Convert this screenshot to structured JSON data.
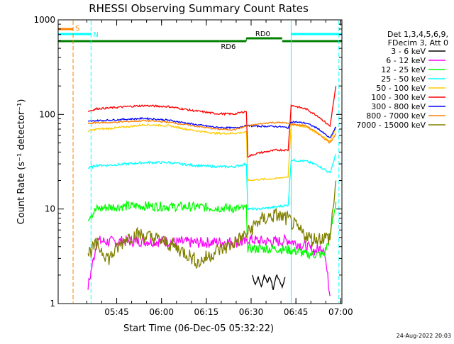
{
  "chart_data": {
    "type": "line",
    "title": "RHESSI Observing Summary Count Rates",
    "xlabel": "Start Time (06-Dec-05 05:32:22)",
    "ylabel": "Count Rate (s⁻¹ detector⁻¹)",
    "yscale": "log",
    "ylim": [
      1,
      1000
    ],
    "xlim": [
      -7,
      88
    ],
    "x_unit": "minutes after 05:32:22",
    "x_ticks": [
      {
        "x": 12.6,
        "label": "05:45"
      },
      {
        "x": 27.6,
        "label": "06:00"
      },
      {
        "x": 42.6,
        "label": "06:15"
      },
      {
        "x": 57.6,
        "label": "06:30"
      },
      {
        "x": 72.6,
        "label": "06:45"
      },
      {
        "x": 87.6,
        "label": "07:00"
      }
    ],
    "y_ticks": [
      {
        "y": 1,
        "label": "1"
      },
      {
        "y": 10,
        "label": "10"
      },
      {
        "y": 100,
        "label": "100"
      },
      {
        "y": 1000,
        "label": "1000"
      }
    ],
    "grid": false,
    "legend_placement": "right",
    "legend_header": [
      "Det 1,3,4,5,6,9,",
      "FDecim 3, Att 0"
    ],
    "series": [
      {
        "name": "3 - 6 keV",
        "color": "#000000",
        "x": [
          58,
          59,
          60,
          61,
          62,
          63,
          64,
          65,
          66,
          67,
          68,
          69
        ],
        "y": [
          2.0,
          1.6,
          1.9,
          1.5,
          2.0,
          1.7,
          1.9,
          1.4,
          2.0,
          1.8,
          1.5,
          1.9
        ]
      },
      {
        "name": "6 - 12 keV",
        "color": "#ff00ff",
        "x": [
          3,
          6,
          10,
          20,
          30,
          40,
          50,
          56,
          56.5,
          60,
          66,
          70,
          74,
          76,
          79,
          82,
          84
        ],
        "y": [
          1.5,
          4.6,
          4.5,
          4.6,
          4.5,
          4.4,
          4.5,
          4.4,
          4.8,
          4.6,
          4.5,
          4.7,
          4.2,
          4.0,
          3.6,
          4.0,
          1.2
        ]
      },
      {
        "name": "12 - 25 keV",
        "color": "#00ff00",
        "x": [
          3,
          6,
          10,
          20,
          30,
          40,
          50,
          56,
          56.5,
          60,
          66,
          70,
          74,
          76,
          79,
          82,
          84,
          85,
          86
        ],
        "y": [
          8.2,
          10.0,
          10.5,
          10.8,
          10.6,
          10.5,
          10.2,
          10.0,
          3.8,
          3.8,
          3.8,
          3.7,
          3.5,
          3.3,
          3.3,
          3.3,
          5.0,
          8.0,
          12.0
        ]
      },
      {
        "name": "25 - 50 keV",
        "color": "#00ffff",
        "x": [
          3,
          6,
          10,
          16,
          22,
          30,
          38,
          46,
          52,
          56,
          56.5,
          60,
          66,
          70,
          71,
          76,
          80,
          84,
          86
        ],
        "y": [
          27,
          29,
          29,
          30,
          31,
          31,
          29,
          28,
          28,
          30,
          10,
          10,
          10.5,
          11,
          33,
          32,
          29,
          24,
          38
        ]
      },
      {
        "name": "50 - 100 keV",
        "color": "#ffcc00",
        "x": [
          3,
          6,
          10,
          16,
          22,
          30,
          38,
          46,
          52,
          56,
          56.5,
          60,
          66,
          70,
          71,
          76,
          80,
          84,
          86
        ],
        "y": [
          67,
          70,
          71,
          74,
          78,
          76,
          68,
          63,
          63,
          65,
          20,
          20.5,
          21,
          22,
          78,
          74,
          63,
          52,
          72
        ]
      },
      {
        "name": "100 - 300 keV",
        "color": "#ff0000",
        "x": [
          3,
          6,
          10,
          16,
          22,
          30,
          38,
          46,
          52,
          56,
          56.5,
          60,
          66,
          70,
          71,
          76,
          80,
          84,
          86
        ],
        "y": [
          108,
          115,
          117,
          121,
          124,
          121,
          110,
          102,
          101,
          108,
          36,
          39,
          42,
          42,
          125,
          114,
          96,
          75,
          200
        ]
      },
      {
        "name": "300 - 800 keV",
        "color": "#0000ff",
        "x": [
          3,
          6,
          10,
          16,
          22,
          30,
          38,
          46,
          52,
          56,
          60,
          64,
          68,
          70,
          71,
          76,
          80,
          84,
          86
        ],
        "y": [
          84,
          86,
          87,
          89,
          91,
          87,
          79,
          73,
          72,
          76,
          75,
          75,
          74,
          72,
          84,
          81,
          71,
          56,
          74
        ]
      },
      {
        "name": "800 - 7000 keV",
        "color": "#ff8000",
        "x": [
          3,
          6,
          10,
          16,
          22,
          30,
          38,
          46,
          52,
          56,
          60,
          64,
          68,
          70,
          71,
          76,
          80,
          84,
          86
        ],
        "y": [
          80,
          82,
          82,
          84,
          86,
          83,
          76,
          70,
          69,
          75,
          79,
          82,
          82,
          80,
          79,
          76,
          63,
          50,
          63
        ]
      },
      {
        "name": "7000 - 15000 keV",
        "color": "#808000",
        "x": [
          3,
          6,
          10,
          16,
          20,
          26,
          30,
          36,
          40,
          46,
          50,
          56,
          60,
          64,
          66,
          70,
          74,
          78,
          82,
          84,
          86
        ],
        "y": [
          3.4,
          4.2,
          3.0,
          5.0,
          5.4,
          4.8,
          4.3,
          3.4,
          2.7,
          3.6,
          4.0,
          5.4,
          7.4,
          8.3,
          8.6,
          7.8,
          5.8,
          4.8,
          5.0,
          5.0,
          20
        ]
      }
    ],
    "flags": [
      {
        "label": "S",
        "color": "#ff8000",
        "x_start": -7,
        "x_end": -2
      },
      {
        "label": "N",
        "color": "#00ffff",
        "x_start": -7,
        "x_end": 4,
        "x_start2": 71,
        "x_end2": 88
      },
      {
        "label": "RD0",
        "color": "#008000",
        "x_start": -7,
        "x_end": 68,
        "x_start2": 68,
        "x_end2": 88
      },
      {
        "label": "RD6",
        "color": "#008000",
        "x_start": 47,
        "x_end": 56
      }
    ],
    "vertical_lines": [
      {
        "x": -2,
        "color": "#ff8000"
      },
      {
        "x": 4,
        "color": "#00ffff"
      },
      {
        "x": 71,
        "color": "#00ffff"
      },
      {
        "x": 87,
        "color": "#00ffff"
      }
    ]
  },
  "timestamp": "24-Aug-2022 20:03"
}
